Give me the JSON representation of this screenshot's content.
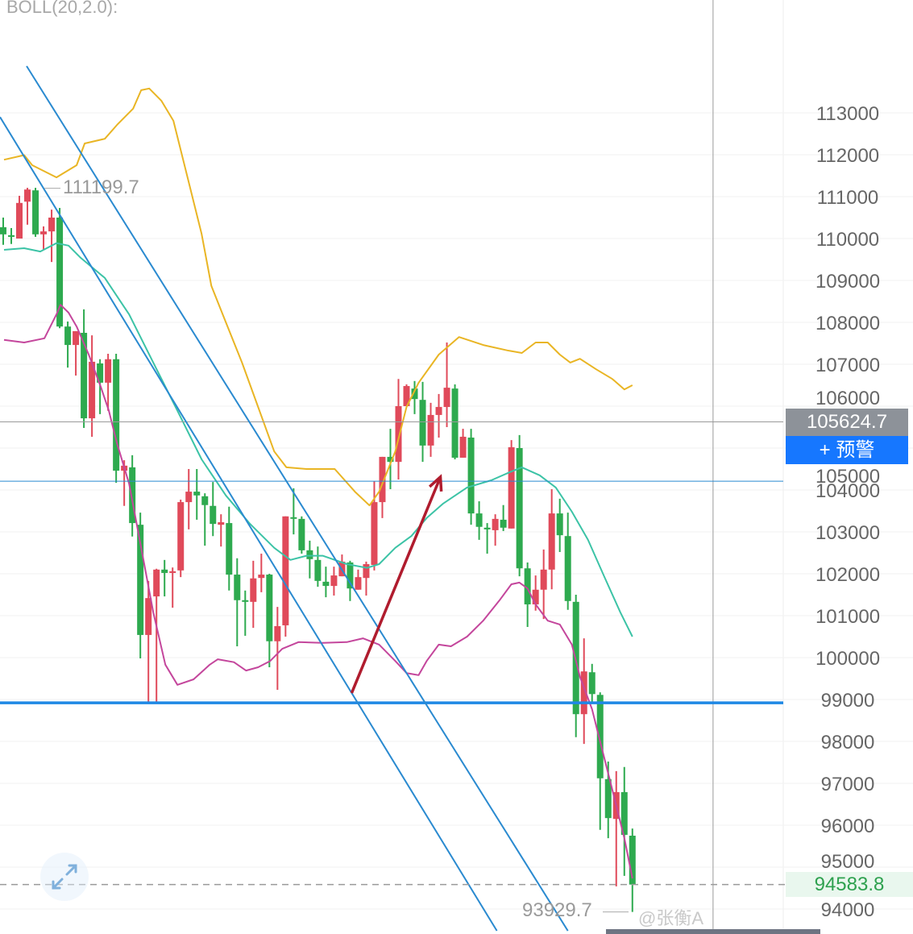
{
  "indicator_label": "BOLL(20,2.0):",
  "labels": {
    "current_price": "105624.7",
    "alert_button": "+ 预警",
    "last_price": "94583.8",
    "visible_high": "111199.7",
    "visible_low": "93929.7",
    "watermark": "@张衡A"
  },
  "colors": {
    "up": "#e04a5a",
    "down": "#2eaa4f",
    "boll_upper": "#e9b524",
    "boll_mid": "#3cc3a6",
    "boll_lower": "#c4469c",
    "trendline": "#2a8ad0",
    "support_line": "#1e88e5",
    "arrow": "#b01c2e",
    "alert_button": "#1677ff"
  },
  "icons": {
    "expand": "expand-arrows-icon"
  },
  "chart_data": {
    "type": "candlestick",
    "convention": "red = up, green = down",
    "yaxis": {
      "ticks": [
        113000,
        112000,
        111000,
        110000,
        109000,
        108000,
        107000,
        106000,
        105000,
        104000,
        103000,
        102000,
        101000,
        100000,
        99000,
        98000,
        97000,
        96000,
        95000,
        94000
      ],
      "grid": true,
      "position": "right"
    },
    "candles_ohlc": [
      [
        110270,
        110500,
        109850,
        110100
      ],
      [
        110080,
        110250,
        109870,
        110040
      ],
      [
        110000,
        111020,
        110000,
        110850
      ],
      [
        110880,
        111210,
        110330,
        111170
      ],
      [
        111150,
        111210,
        110040,
        110100
      ],
      [
        110100,
        110290,
        109730,
        110170
      ],
      [
        110170,
        110690,
        109440,
        110500
      ],
      [
        110500,
        110730,
        107860,
        107900
      ],
      [
        107900,
        108020,
        106920,
        107460
      ],
      [
        107460,
        107790,
        106730,
        107790
      ],
      [
        107750,
        108310,
        105480,
        105710
      ],
      [
        105710,
        107690,
        105270,
        107060
      ],
      [
        107020,
        107120,
        105810,
        106560
      ],
      [
        106560,
        107250,
        105890,
        107120
      ],
      [
        107120,
        107250,
        104170,
        104460
      ],
      [
        104460,
        104710,
        103620,
        104580
      ],
      [
        104540,
        104830,
        102890,
        103210
      ],
      [
        103170,
        103460,
        99980,
        100540
      ],
      [
        100540,
        101830,
        98920,
        101420
      ],
      [
        101460,
        102120,
        98920,
        102100
      ],
      [
        102100,
        102330,
        101460,
        102020
      ],
      [
        102020,
        102150,
        101190,
        102060
      ],
      [
        102080,
        103770,
        101920,
        103710
      ],
      [
        103710,
        104500,
        103060,
        103960
      ],
      [
        103960,
        104500,
        103290,
        103870
      ],
      [
        103850,
        103920,
        102670,
        103640
      ],
      [
        103620,
        104190,
        102900,
        103190
      ],
      [
        103170,
        103420,
        102650,
        103230
      ],
      [
        103210,
        103600,
        101600,
        101980
      ],
      [
        101980,
        102370,
        100270,
        101370
      ],
      [
        101370,
        101600,
        100520,
        101330
      ],
      [
        101330,
        102310,
        100710,
        101890
      ],
      [
        101900,
        102480,
        101560,
        101980
      ],
      [
        101980,
        102000,
        99770,
        100390
      ],
      [
        100390,
        101210,
        99230,
        100750
      ],
      [
        100770,
        103370,
        100500,
        103370
      ],
      [
        103350,
        104040,
        102940,
        103330
      ],
      [
        103310,
        103370,
        102480,
        102560
      ],
      [
        102560,
        102790,
        101890,
        102350
      ],
      [
        102330,
        102650,
        101690,
        101830
      ],
      [
        101810,
        102170,
        101440,
        101710
      ],
      [
        101710,
        102170,
        101480,
        101960
      ],
      [
        101940,
        102460,
        101940,
        102290
      ],
      [
        102270,
        102310,
        101350,
        101650
      ],
      [
        101620,
        102100,
        101620,
        101920
      ],
      [
        101900,
        102290,
        101480,
        102230
      ],
      [
        102210,
        104210,
        102080,
        103710
      ],
      [
        103710,
        104790,
        103330,
        104790
      ],
      [
        104790,
        105460,
        104020,
        104670
      ],
      [
        104670,
        106650,
        104250,
        106000
      ],
      [
        106000,
        106520,
        106000,
        106480
      ],
      [
        106420,
        106600,
        105810,
        106170
      ],
      [
        106150,
        106580,
        104670,
        105060
      ],
      [
        105060,
        106080,
        104790,
        105790
      ],
      [
        105790,
        106290,
        105250,
        105980
      ],
      [
        105980,
        107520,
        105500,
        106440
      ],
      [
        106420,
        106520,
        104730,
        104770
      ],
      [
        104770,
        105460,
        104770,
        105270
      ],
      [
        105250,
        105460,
        103170,
        103440
      ],
      [
        103440,
        103730,
        102810,
        103120
      ],
      [
        103100,
        103210,
        102480,
        103060
      ],
      [
        103040,
        103420,
        102670,
        103310
      ],
      [
        103290,
        103640,
        103020,
        103100
      ],
      [
        103080,
        105190,
        103080,
        105020
      ],
      [
        105000,
        105310,
        101940,
        102130
      ],
      [
        102130,
        102270,
        100730,
        101270
      ],
      [
        101270,
        101960,
        101120,
        101620
      ],
      [
        101620,
        102580,
        100920,
        102100
      ],
      [
        102100,
        104020,
        101630,
        103440
      ],
      [
        103440,
        103790,
        102520,
        102920
      ],
      [
        102900,
        103460,
        101140,
        101350
      ],
      [
        101330,
        101500,
        98100,
        98650
      ],
      [
        98650,
        100460,
        97940,
        99670
      ],
      [
        99650,
        99850,
        98920,
        99130
      ],
      [
        99110,
        99170,
        95890,
        97120
      ],
      [
        97100,
        97520,
        95690,
        96170
      ],
      [
        96150,
        97290,
        94540,
        96790
      ],
      [
        96790,
        97390,
        94790,
        95770
      ],
      [
        95750,
        95920,
        93929.7,
        94583.8
      ]
    ],
    "boll_upper": [
      [
        0.1,
        111880
      ],
      [
        2.6,
        111990
      ],
      [
        3.6,
        111750
      ],
      [
        6.6,
        111460
      ],
      [
        9.1,
        111750
      ],
      [
        10.1,
        112270
      ],
      [
        12.6,
        112380
      ],
      [
        14.1,
        112710
      ],
      [
        16.1,
        113100
      ],
      [
        17.1,
        113540
      ],
      [
        18.1,
        113580
      ],
      [
        19.6,
        113290
      ],
      [
        21.1,
        112810
      ],
      [
        23.1,
        111270
      ],
      [
        24.6,
        110110
      ],
      [
        25.8,
        108870
      ],
      [
        27.6,
        108000
      ],
      [
        29.6,
        107040
      ],
      [
        31.6,
        105980
      ],
      [
        33.6,
        104920
      ],
      [
        35.1,
        104540
      ],
      [
        37.6,
        104500
      ],
      [
        41.1,
        104500
      ],
      [
        43.6,
        103960
      ],
      [
        45.4,
        103630
      ],
      [
        46.6,
        103960
      ],
      [
        48.6,
        104920
      ],
      [
        50.0,
        105980
      ],
      [
        51.5,
        106560
      ],
      [
        54.0,
        107230
      ],
      [
        56.5,
        107650
      ],
      [
        59.5,
        107460
      ],
      [
        62.5,
        107330
      ],
      [
        64.3,
        107270
      ],
      [
        66.0,
        107520
      ],
      [
        67.5,
        107520
      ],
      [
        69.0,
        107230
      ],
      [
        70.3,
        107040
      ],
      [
        71.5,
        107130
      ],
      [
        73.5,
        106880
      ],
      [
        75.5,
        106650
      ],
      [
        77.0,
        106400
      ],
      [
        78.0,
        106500
      ]
    ],
    "boll_mid": [
      [
        0.1,
        109730
      ],
      [
        2.6,
        109770
      ],
      [
        4.6,
        109690
      ],
      [
        6.6,
        109890
      ],
      [
        8.1,
        109830
      ],
      [
        9.6,
        109540
      ],
      [
        12.6,
        109060
      ],
      [
        15.6,
        108190
      ],
      [
        18.6,
        107040
      ],
      [
        21.6,
        105890
      ],
      [
        24.6,
        104730
      ],
      [
        27.6,
        103870
      ],
      [
        30.6,
        103190
      ],
      [
        33.6,
        102620
      ],
      [
        35.6,
        102330
      ],
      [
        37.6,
        102430
      ],
      [
        39.6,
        102430
      ],
      [
        42.6,
        102230
      ],
      [
        45.1,
        102140
      ],
      [
        46.6,
        102230
      ],
      [
        48.6,
        102620
      ],
      [
        50.6,
        102900
      ],
      [
        52.5,
        103330
      ],
      [
        54.5,
        103670
      ],
      [
        57.5,
        104060
      ],
      [
        60.5,
        104230
      ],
      [
        63.0,
        104440
      ],
      [
        64.3,
        104540
      ],
      [
        66.5,
        104350
      ],
      [
        68.5,
        104060
      ],
      [
        70.5,
        103480
      ],
      [
        72.5,
        102810
      ],
      [
        74.5,
        101940
      ],
      [
        76.5,
        101080
      ],
      [
        78.0,
        100500
      ]
    ],
    "boll_lower": [
      [
        0.1,
        107580
      ],
      [
        2.6,
        107520
      ],
      [
        5.1,
        107620
      ],
      [
        6.6,
        108190
      ],
      [
        7.1,
        108420
      ],
      [
        8.1,
        108230
      ],
      [
        9.1,
        107900
      ],
      [
        10.6,
        107230
      ],
      [
        12.1,
        106460
      ],
      [
        13.1,
        105890
      ],
      [
        14.1,
        105120
      ],
      [
        15.6,
        104150
      ],
      [
        17.1,
        102620
      ],
      [
        18.6,
        101080
      ],
      [
        20.1,
        99830
      ],
      [
        21.6,
        99350
      ],
      [
        23.6,
        99480
      ],
      [
        25.6,
        99830
      ],
      [
        26.6,
        99960
      ],
      [
        28.6,
        99890
      ],
      [
        30.1,
        99690
      ],
      [
        31.6,
        99770
      ],
      [
        33.1,
        99920
      ],
      [
        34.6,
        100210
      ],
      [
        36.6,
        100370
      ],
      [
        39.6,
        100350
      ],
      [
        42.6,
        100370
      ],
      [
        44.6,
        100460
      ],
      [
        46.6,
        100310
      ],
      [
        48.6,
        99920
      ],
      [
        50.0,
        99630
      ],
      [
        51.5,
        99580
      ],
      [
        52.5,
        99920
      ],
      [
        54.0,
        100310
      ],
      [
        55.5,
        100270
      ],
      [
        57.5,
        100500
      ],
      [
        59.5,
        100880
      ],
      [
        61.5,
        101360
      ],
      [
        63.0,
        101750
      ],
      [
        64.0,
        101790
      ],
      [
        65.0,
        101650
      ],
      [
        66.0,
        101270
      ],
      [
        67.5,
        100880
      ],
      [
        69.0,
        100790
      ],
      [
        70.5,
        100310
      ],
      [
        71.5,
        99540
      ],
      [
        73.0,
        98770
      ],
      [
        74.0,
        98000
      ],
      [
        75.5,
        96850
      ],
      [
        77.0,
        95690
      ],
      [
        78.0,
        94730
      ]
    ],
    "drawings": {
      "trendlines": [
        [
          [
            2.9,
            114115
          ],
          [
            70.0,
            93480
          ]
        ],
        [
          [
            -0.4,
            112900
          ],
          [
            61.2,
            93480
          ]
        ]
      ],
      "support_level": 98920,
      "horizontal_level": 104210,
      "arrow": [
        [
          43.2,
          99155
        ],
        [
          54.2,
          104310
        ]
      ],
      "crosshair": {
        "index": 88.0,
        "price": 105624.7
      }
    }
  }
}
